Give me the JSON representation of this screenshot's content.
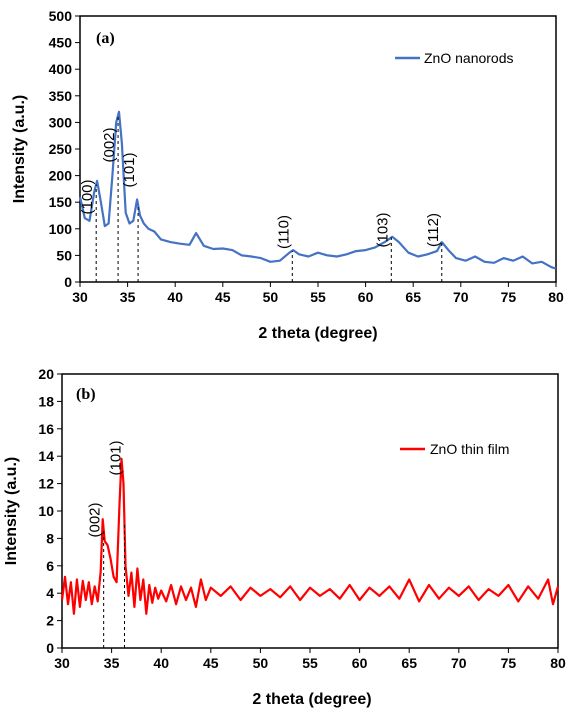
{
  "chart_data": [
    {
      "type": "line",
      "panel_label": "(a)",
      "xlabel": "2 theta (degree)",
      "ylabel": "Intensity (a.u.)",
      "xlim": [
        30,
        80
      ],
      "ylim": [
        0,
        500
      ],
      "xticks": [
        30,
        35,
        40,
        45,
        50,
        55,
        60,
        65,
        70,
        75,
        80
      ],
      "yticks": [
        0,
        50,
        100,
        150,
        200,
        250,
        300,
        350,
        400,
        450,
        500
      ],
      "legend_position": "top-right",
      "color": "#4472C4",
      "series": [
        {
          "name": "ZnO nanorods",
          "x": [
            30,
            30.5,
            31,
            31.5,
            31.8,
            32.2,
            32.6,
            33,
            33.4,
            33.8,
            34.1,
            34.4,
            34.8,
            35.2,
            35.6,
            36.0,
            36.3,
            36.7,
            37.2,
            37.8,
            38.5,
            39.5,
            40.5,
            41.5,
            42.2,
            43,
            44,
            45,
            46,
            47,
            48,
            49,
            50,
            51,
            52,
            52.4,
            53,
            54,
            55,
            56,
            57,
            58,
            59,
            60,
            61,
            62,
            62.8,
            63.5,
            64.5,
            65.5,
            66.5,
            67.5,
            68,
            68.7,
            69.5,
            70.5,
            71.5,
            72.5,
            73.5,
            74.5,
            75.5,
            76.5,
            77.5,
            78.5,
            79.5,
            80
          ],
          "y": [
            160,
            120,
            115,
            170,
            190,
            150,
            105,
            110,
            200,
            300,
            320,
            260,
            130,
            110,
            115,
            155,
            125,
            110,
            100,
            95,
            80,
            75,
            72,
            70,
            92,
            68,
            62,
            63,
            60,
            50,
            48,
            45,
            38,
            40,
            55,
            60,
            52,
            48,
            55,
            50,
            48,
            52,
            58,
            60,
            65,
            75,
            85,
            75,
            55,
            48,
            52,
            58,
            75,
            60,
            45,
            40,
            48,
            38,
            36,
            45,
            40,
            48,
            35,
            38,
            28,
            25
          ]
        }
      ],
      "annotations": [
        {
          "label": "(100)",
          "x": 31.7
        },
        {
          "label": "(002)",
          "x": 34.0
        },
        {
          "label": "(101)",
          "x": 36.1
        },
        {
          "label": "(110)",
          "x": 52.3
        },
        {
          "label": "(103)",
          "x": 62.7
        },
        {
          "label": "(112)",
          "x": 68.0
        }
      ]
    },
    {
      "type": "line",
      "panel_label": "(b)",
      "xlabel": "2 theta (degree)",
      "ylabel": "Intensity (a.u.)",
      "xlim": [
        30,
        80
      ],
      "ylim": [
        0,
        20
      ],
      "xticks": [
        30,
        35,
        40,
        45,
        50,
        55,
        60,
        65,
        70,
        75,
        80
      ],
      "yticks": [
        0,
        2,
        4,
        6,
        8,
        10,
        12,
        14,
        16,
        18,
        20
      ],
      "legend_position": "right",
      "color": "#FF0000",
      "series": [
        {
          "name": "ZnO thin film",
          "x": [
            30,
            30.3,
            30.6,
            30.9,
            31.2,
            31.5,
            31.8,
            32.1,
            32.4,
            32.7,
            33.0,
            33.3,
            33.6,
            33.9,
            34.1,
            34.3,
            34.6,
            34.9,
            35.2,
            35.5,
            35.8,
            36.0,
            36.2,
            36.4,
            36.7,
            37.0,
            37.3,
            37.6,
            37.9,
            38.2,
            38.5,
            38.8,
            39.1,
            39.4,
            39.7,
            40.0,
            40.5,
            41,
            41.5,
            42,
            42.5,
            43,
            43.5,
            44,
            44.5,
            45,
            46,
            47,
            48,
            49,
            50,
            51,
            52,
            53,
            54,
            55,
            56,
            57,
            58,
            59,
            60,
            61,
            62,
            63,
            64,
            65,
            66,
            67,
            68,
            69,
            70,
            71,
            72,
            73,
            74,
            75,
            76,
            77,
            78,
            79,
            79.5,
            80
          ],
          "y": [
            3.5,
            5.2,
            3.2,
            4.8,
            2.5,
            5.0,
            3.0,
            4.9,
            3.5,
            4.8,
            3.2,
            4.5,
            3.4,
            5.6,
            9.4,
            7.8,
            7.5,
            6.5,
            5.2,
            4.8,
            10.5,
            13.8,
            12.0,
            6.0,
            3.8,
            5.5,
            3.0,
            5.8,
            3.5,
            5.0,
            2.5,
            4.6,
            3.3,
            4.4,
            3.6,
            4.2,
            3.4,
            4.6,
            3.2,
            4.5,
            3.5,
            4.4,
            3.0,
            5.0,
            3.5,
            4.4,
            3.8,
            4.5,
            3.5,
            4.4,
            3.8,
            4.3,
            3.7,
            4.5,
            3.5,
            4.4,
            3.8,
            4.3,
            3.6,
            4.6,
            3.5,
            4.4,
            3.8,
            4.5,
            3.6,
            5.0,
            3.4,
            4.6,
            3.6,
            4.4,
            3.8,
            4.5,
            3.5,
            4.3,
            3.8,
            4.6,
            3.4,
            4.5,
            3.6,
            5.0,
            3.2,
            4.5
          ]
        }
      ],
      "annotations": [
        {
          "label": "(002)",
          "x": 34.2
        },
        {
          "label": "(101)",
          "x": 36.3
        }
      ]
    }
  ]
}
